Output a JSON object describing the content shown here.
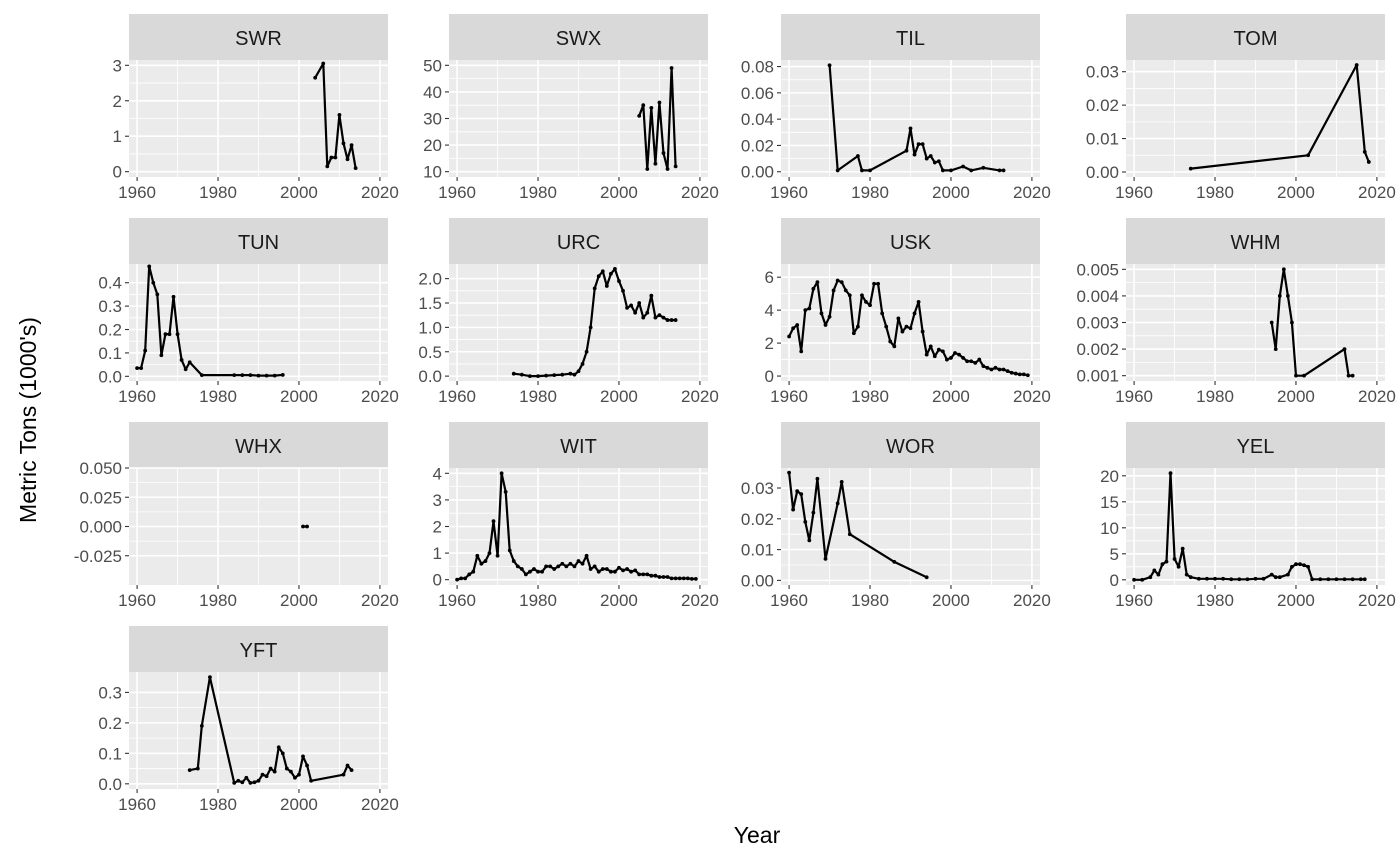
{
  "chart_data": {
    "type": "line",
    "xlabel": "Year",
    "ylabel": "Metric Tons (1000's)",
    "x_ticks": [
      1960,
      1980,
      2000,
      2020
    ],
    "xlim": [
      1958,
      2022
    ],
    "grid": true,
    "facets": [
      {
        "name": "SWR",
        "y_ticks": [
          0,
          1,
          2,
          3
        ],
        "y_tick_labels": [
          "0",
          "1",
          "2",
          "3"
        ],
        "ylim": [
          -0.15,
          3.15
        ],
        "x": [
          2004,
          2006,
          2007,
          2008,
          2009,
          2010,
          2011,
          2012,
          2013,
          2014
        ],
        "y": [
          2.65,
          3.05,
          0.15,
          0.4,
          0.4,
          1.6,
          0.8,
          0.35,
          0.75,
          0.1
        ]
      },
      {
        "name": "SWX",
        "y_ticks": [
          10,
          20,
          30,
          40,
          50
        ],
        "y_tick_labels": [
          "10",
          "20",
          "30",
          "40",
          "50"
        ],
        "ylim": [
          8.0,
          52.0
        ],
        "x": [
          2005,
          2006,
          2007,
          2008,
          2009,
          2010,
          2011,
          2012,
          2013,
          2014
        ],
        "y": [
          31,
          35,
          11,
          34,
          13,
          36,
          17,
          11,
          49,
          12
        ]
      },
      {
        "name": "TIL",
        "y_ticks": [
          0,
          0.02,
          0.04,
          0.06,
          0.08
        ],
        "y_tick_labels": [
          "0.00",
          "0.02",
          "0.04",
          "0.06",
          "0.08"
        ],
        "ylim": [
          -0.004,
          0.085
        ],
        "x": [
          1970,
          1972,
          1977,
          1978,
          1980,
          1989,
          1990,
          1991,
          1992,
          1993,
          1994,
          1995,
          1996,
          1997,
          1998,
          2000,
          2003,
          2005,
          2008,
          2012,
          2013
        ],
        "y": [
          0.081,
          0.001,
          0.012,
          0.001,
          0.001,
          0.016,
          0.033,
          0.013,
          0.021,
          0.021,
          0.01,
          0.012,
          0.007,
          0.008,
          0.001,
          0.001,
          0.004,
          0.001,
          0.003,
          0.001,
          0.001
        ]
      },
      {
        "name": "TOM",
        "y_ticks": [
          0,
          0.01,
          0.02,
          0.03
        ],
        "y_tick_labels": [
          "0.00",
          "0.01",
          "0.02",
          "0.03"
        ],
        "ylim": [
          -0.0015,
          0.0335
        ],
        "x": [
          1974,
          2003,
          2015,
          2017,
          2018
        ],
        "y": [
          0.001,
          0.005,
          0.032,
          0.006,
          0.003
        ]
      },
      {
        "name": "TUN",
        "y_ticks": [
          0,
          0.1,
          0.2,
          0.3,
          0.4
        ],
        "y_tick_labels": [
          "0.0",
          "0.1",
          "0.2",
          "0.3",
          "0.4"
        ],
        "ylim": [
          -0.02,
          0.48
        ],
        "x": [
          1960,
          1961,
          1962,
          1963,
          1964,
          1965,
          1966,
          1967,
          1968,
          1969,
          1970,
          1971,
          1972,
          1973,
          1976,
          1984,
          1986,
          1988,
          1990,
          1992,
          1994,
          1996
        ],
        "y": [
          0.035,
          0.035,
          0.11,
          0.47,
          0.4,
          0.35,
          0.09,
          0.18,
          0.18,
          0.34,
          0.18,
          0.07,
          0.03,
          0.06,
          0.005,
          0.005,
          0.005,
          0.005,
          0.003,
          0.003,
          0.003,
          0.006
        ]
      },
      {
        "name": "URC",
        "y_ticks": [
          0,
          0.5,
          1,
          1.5,
          2
        ],
        "y_tick_labels": [
          "0.0",
          "0.5",
          "1.0",
          "1.5",
          "2.0"
        ],
        "ylim": [
          -0.1,
          2.3
        ],
        "x": [
          1974,
          1976,
          1978,
          1980,
          1982,
          1984,
          1986,
          1988,
          1989,
          1990,
          1991,
          1992,
          1993,
          1994,
          1995,
          1996,
          1997,
          1998,
          1999,
          2000,
          2001,
          2002,
          2003,
          2004,
          2005,
          2006,
          2007,
          2008,
          2009,
          2010,
          2011,
          2012,
          2013,
          2014
        ],
        "y": [
          0.05,
          0.03,
          0.0,
          0.0,
          0.01,
          0.02,
          0.03,
          0.05,
          0.03,
          0.1,
          0.25,
          0.5,
          1.0,
          1.8,
          2.05,
          2.15,
          1.85,
          2.1,
          2.2,
          1.95,
          1.75,
          1.4,
          1.45,
          1.3,
          1.5,
          1.2,
          1.3,
          1.65,
          1.2,
          1.25,
          1.2,
          1.15,
          1.15,
          1.15
        ]
      },
      {
        "name": "USK",
        "y_ticks": [
          0,
          2,
          4,
          6
        ],
        "y_tick_labels": [
          "0",
          "2",
          "4",
          "6"
        ],
        "ylim": [
          -0.3,
          6.8
        ],
        "x": [
          1960,
          1961,
          1962,
          1963,
          1964,
          1965,
          1966,
          1967,
          1968,
          1969,
          1970,
          1971,
          1972,
          1973,
          1974,
          1975,
          1976,
          1977,
          1978,
          1979,
          1980,
          1981,
          1982,
          1983,
          1984,
          1985,
          1986,
          1987,
          1988,
          1989,
          1990,
          1991,
          1992,
          1993,
          1994,
          1995,
          1996,
          1997,
          1998,
          1999,
          2000,
          2001,
          2002,
          2003,
          2004,
          2005,
          2006,
          2007,
          2008,
          2009,
          2010,
          2011,
          2012,
          2013,
          2014,
          2015,
          2016,
          2017,
          2018,
          2019
        ],
        "y": [
          2.4,
          2.9,
          3.1,
          1.5,
          4.0,
          4.1,
          5.3,
          5.7,
          3.8,
          3.1,
          3.6,
          5.2,
          5.8,
          5.7,
          5.2,
          4.9,
          2.6,
          3.0,
          4.9,
          4.5,
          4.3,
          5.6,
          5.6,
          3.8,
          3.0,
          2.1,
          1.8,
          3.5,
          2.7,
          3.0,
          2.9,
          3.8,
          4.5,
          2.7,
          1.3,
          1.8,
          1.2,
          1.6,
          1.5,
          1.0,
          1.1,
          1.4,
          1.3,
          1.1,
          0.9,
          0.9,
          0.8,
          1.0,
          0.6,
          0.5,
          0.4,
          0.5,
          0.4,
          0.4,
          0.3,
          0.2,
          0.15,
          0.1,
          0.1,
          0.05
        ]
      },
      {
        "name": "WHM",
        "y_ticks": [
          0.001,
          0.002,
          0.003,
          0.004,
          0.005
        ],
        "y_tick_labels": [
          "0.001",
          "0.002",
          "0.003",
          "0.004",
          "0.005"
        ],
        "ylim": [
          0.0008,
          0.0052
        ],
        "x": [
          1994,
          1995,
          1996,
          1997,
          1998,
          1999,
          2000,
          2002,
          2012,
          2013,
          2014
        ],
        "y": [
          0.003,
          0.002,
          0.004,
          0.005,
          0.004,
          0.003,
          0.001,
          0.001,
          0.002,
          0.001,
          0.001
        ]
      },
      {
        "name": "WHX",
        "y_ticks": [
          -0.025,
          0,
          0.025,
          0.05
        ],
        "y_tick_labels": [
          "-0.025",
          "0.000",
          "0.025",
          "0.050"
        ],
        "ylim": [
          -0.05,
          0.05
        ],
        "x": [
          2001,
          2002
        ],
        "y": [
          0.0,
          0.0
        ]
      },
      {
        "name": "WIT",
        "y_ticks": [
          0,
          1,
          2,
          3,
          4
        ],
        "y_tick_labels": [
          "0",
          "1",
          "2",
          "3",
          "4"
        ],
        "ylim": [
          -0.2,
          4.2
        ],
        "x": [
          1960,
          1961,
          1962,
          1963,
          1964,
          1965,
          1966,
          1967,
          1968,
          1969,
          1970,
          1971,
          1972,
          1973,
          1974,
          1975,
          1976,
          1977,
          1978,
          1979,
          1980,
          1981,
          1982,
          1983,
          1984,
          1985,
          1986,
          1987,
          1988,
          1989,
          1990,
          1991,
          1992,
          1993,
          1994,
          1995,
          1996,
          1997,
          1998,
          1999,
          2000,
          2001,
          2002,
          2003,
          2004,
          2005,
          2006,
          2007,
          2008,
          2009,
          2010,
          2011,
          2012,
          2013,
          2014,
          2015,
          2016,
          2017,
          2018,
          2019
        ],
        "y": [
          0.0,
          0.05,
          0.05,
          0.2,
          0.3,
          0.9,
          0.6,
          0.7,
          1.0,
          2.2,
          0.9,
          4.0,
          3.3,
          1.1,
          0.7,
          0.5,
          0.4,
          0.2,
          0.3,
          0.4,
          0.3,
          0.3,
          0.5,
          0.5,
          0.4,
          0.5,
          0.6,
          0.5,
          0.6,
          0.5,
          0.7,
          0.6,
          0.9,
          0.4,
          0.5,
          0.3,
          0.4,
          0.4,
          0.3,
          0.3,
          0.45,
          0.35,
          0.4,
          0.3,
          0.35,
          0.2,
          0.2,
          0.2,
          0.15,
          0.15,
          0.1,
          0.1,
          0.1,
          0.05,
          0.05,
          0.05,
          0.05,
          0.05,
          0.03,
          0.03
        ]
      },
      {
        "name": "WOR",
        "y_ticks": [
          0,
          0.01,
          0.02,
          0.03
        ],
        "y_tick_labels": [
          "0.00",
          "0.01",
          "0.02",
          "0.03"
        ],
        "ylim": [
          -0.0015,
          0.0365
        ],
        "x": [
          1960,
          1961,
          1962,
          1963,
          1964,
          1965,
          1966,
          1967,
          1969,
          1972,
          1973,
          1975,
          1986,
          1994
        ],
        "y": [
          0.035,
          0.023,
          0.029,
          0.028,
          0.019,
          0.013,
          0.022,
          0.033,
          0.007,
          0.025,
          0.032,
          0.015,
          0.006,
          0.001
        ]
      },
      {
        "name": "YEL",
        "y_ticks": [
          0,
          5,
          10,
          15,
          20
        ],
        "y_tick_labels": [
          "0",
          "5",
          "10",
          "15",
          "20"
        ],
        "ylim": [
          -1.0,
          21.5
        ],
        "x": [
          1960,
          1962,
          1964,
          1965,
          1966,
          1967,
          1968,
          1969,
          1970,
          1971,
          1972,
          1973,
          1974,
          1976,
          1978,
          1980,
          1982,
          1984,
          1986,
          1988,
          1990,
          1992,
          1994,
          1995,
          1996,
          1998,
          1999,
          2000,
          2001,
          2002,
          2003,
          2004,
          2006,
          2008,
          2010,
          2012,
          2014,
          2016,
          2017
        ],
        "y": [
          0,
          0,
          0.5,
          1.8,
          1.0,
          3.0,
          3.5,
          20.5,
          4.0,
          2.5,
          6.0,
          1.0,
          0.5,
          0.2,
          0.2,
          0.2,
          0.2,
          0.1,
          0.1,
          0.1,
          0.2,
          0.2,
          1.0,
          0.5,
          0.5,
          1.0,
          2.5,
          3.0,
          3.0,
          2.8,
          2.5,
          0.1,
          0.1,
          0.1,
          0.1,
          0.1,
          0.1,
          0.1,
          0.1
        ]
      },
      {
        "name": "YFT",
        "y_ticks": [
          0,
          0.1,
          0.2,
          0.3
        ],
        "y_tick_labels": [
          "0.0",
          "0.1",
          "0.2",
          "0.3"
        ],
        "ylim": [
          -0.017,
          0.367
        ],
        "x": [
          1973,
          1975,
          1976,
          1978,
          1984,
          1985,
          1986,
          1987,
          1988,
          1989,
          1990,
          1991,
          1992,
          1993,
          1994,
          1995,
          1996,
          1997,
          1998,
          1999,
          2000,
          2001,
          2002,
          2003,
          2011,
          2012,
          2013
        ],
        "y": [
          0.045,
          0.05,
          0.19,
          0.35,
          0.003,
          0.01,
          0.005,
          0.02,
          0.003,
          0.005,
          0.01,
          0.03,
          0.025,
          0.05,
          0.04,
          0.12,
          0.1,
          0.05,
          0.04,
          0.02,
          0.03,
          0.09,
          0.06,
          0.01,
          0.03,
          0.06,
          0.045
        ]
      }
    ]
  }
}
